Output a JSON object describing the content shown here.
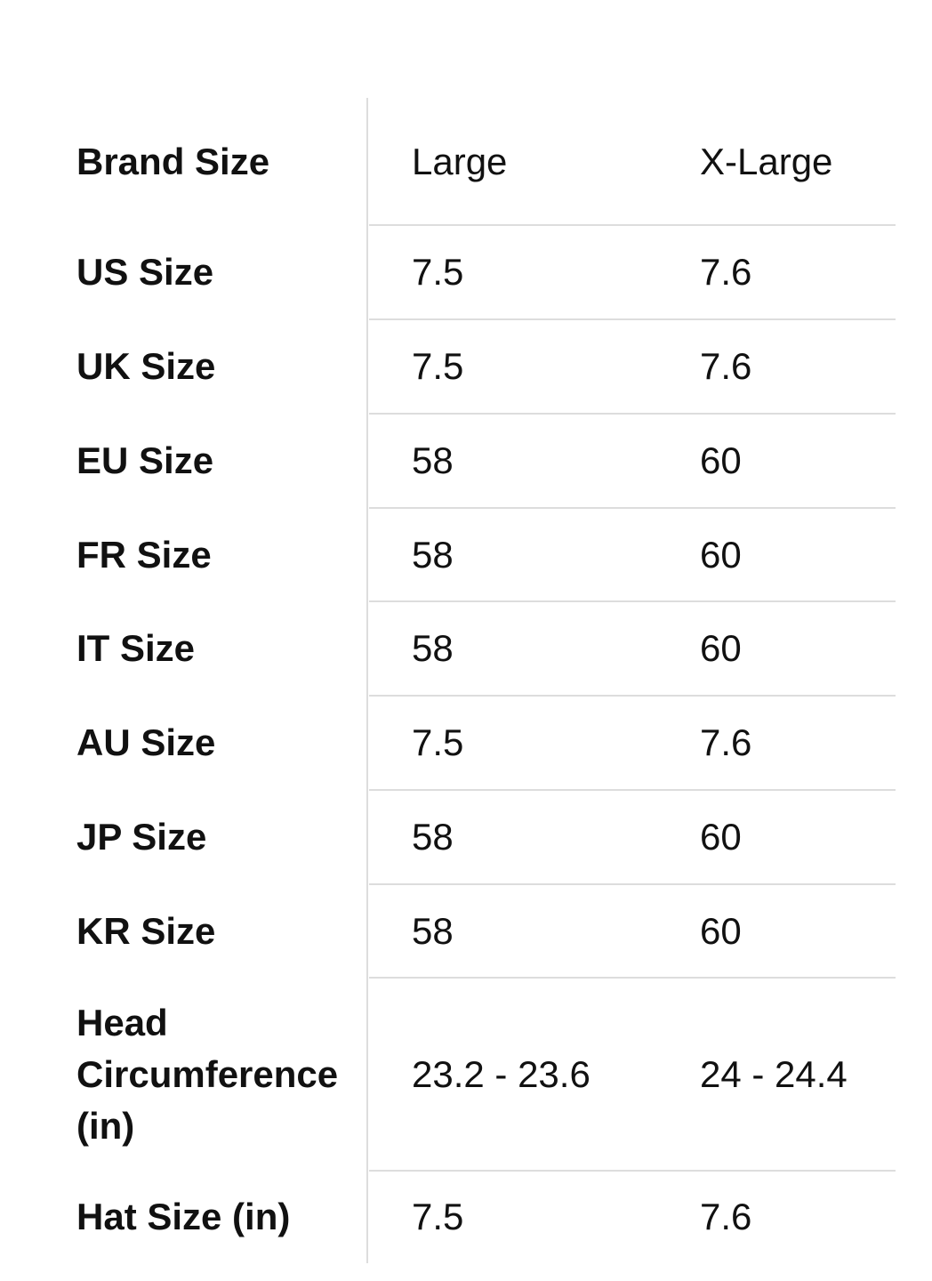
{
  "table": {
    "header": [
      "Brand Size",
      "Large",
      "X-Large"
    ],
    "rows": [
      [
        "US Size",
        "7.5",
        "7.6"
      ],
      [
        "UK Size",
        "7.5",
        "7.6"
      ],
      [
        "EU Size",
        "58",
        "60"
      ],
      [
        "FR Size",
        "58",
        "60"
      ],
      [
        "IT Size",
        "58",
        "60"
      ],
      [
        "AU Size",
        "7.5",
        "7.6"
      ],
      [
        "JP Size",
        "58",
        "60"
      ],
      [
        "KR Size",
        "58",
        "60"
      ],
      [
        "Head Circumference (in)",
        "23.2 - 23.6",
        "24 - 24.4"
      ],
      [
        "Hat Size (in)",
        "7.5",
        "7.6"
      ]
    ]
  }
}
